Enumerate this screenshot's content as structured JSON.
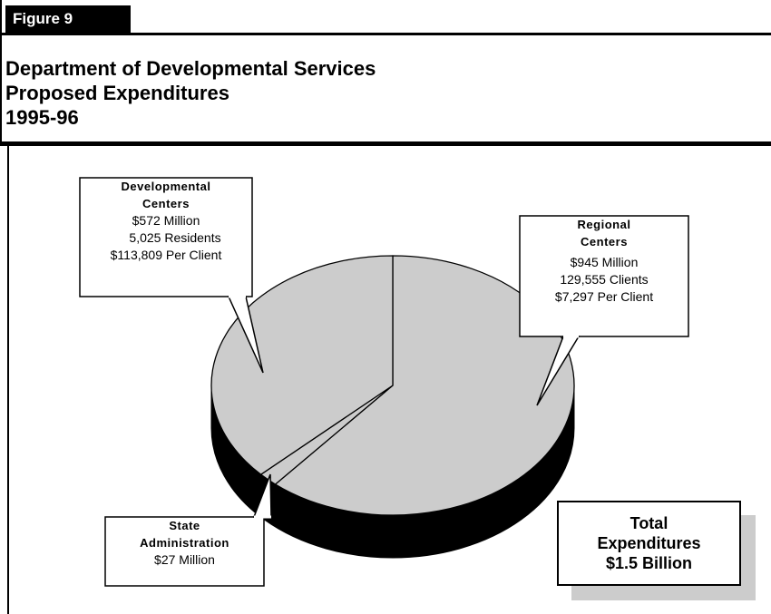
{
  "figure_label": "Figure 9",
  "title": {
    "line1": "Department of Developmental Services",
    "line2": "Proposed Expenditures",
    "line3": "1995-96"
  },
  "chart_data": {
    "type": "pie",
    "title": "Department of Developmental Services Proposed Expenditures 1995-96",
    "unit": "Million",
    "slices": [
      {
        "name": "Regional Centers",
        "value": 945,
        "color": "#cccccc",
        "label_lines": [
          "Regional",
          "Centers"
        ],
        "details": [
          "$945 Million",
          "129,555 Clients",
          "$7,297 Per Client"
        ]
      },
      {
        "name": "State Administration",
        "value": 27,
        "color": "#cccccc",
        "label_lines": [
          "State",
          "Administration"
        ],
        "details": [
          "$27 Million"
        ]
      },
      {
        "name": "Developmental Centers",
        "value": 572,
        "color": "#cccccc",
        "label_lines": [
          "Developmental",
          "Centers"
        ],
        "details": [
          "$572 Million",
          "5,025 Residents",
          "$113,809 Per Client"
        ]
      }
    ],
    "total": {
      "line1": "Total",
      "line2": "Expenditures",
      "line3": "$1.5 Billion"
    }
  }
}
